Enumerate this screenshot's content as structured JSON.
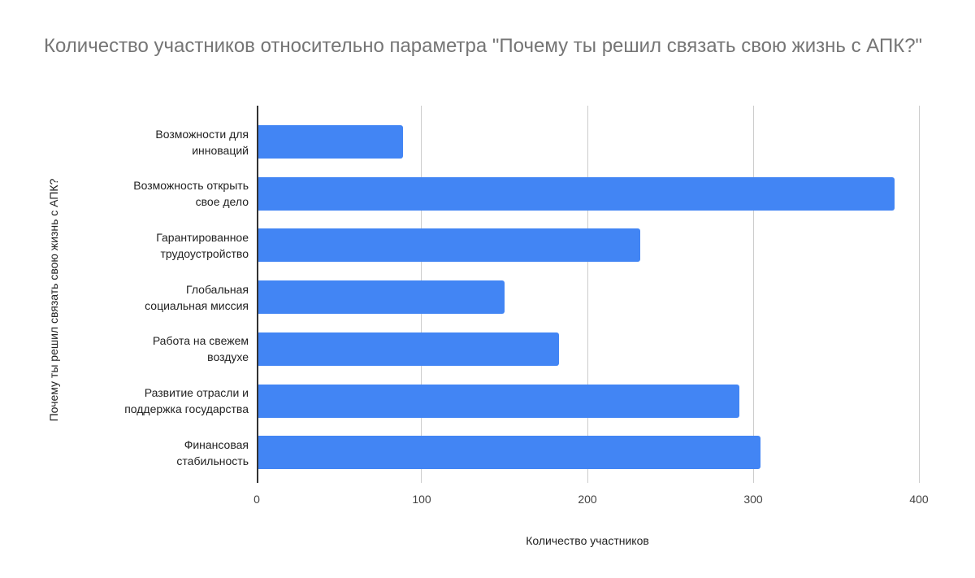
{
  "chart_data": {
    "type": "bar",
    "orientation": "horizontal",
    "title": "Количество участников относительно параметра \"Почему ты решил связать свою жизнь с АПК?\"",
    "xlabel": "Количество участников",
    "ylabel": "Почему ты решил связать свою жизнь с АПК?",
    "categories": [
      "Возможности для инноваций",
      "Возможность открыть свое дело",
      "Гарантированное трудоустройство",
      "Глобальная социальная миссия",
      "Работа на свежем воздухе",
      "Развитие отрасли и поддержка государства",
      "Финансовая стабильность"
    ],
    "category_lines": [
      [
        "Возможности для",
        "инноваций"
      ],
      [
        "Возможность открыть",
        "свое дело"
      ],
      [
        "Гарантированное",
        "трудоустройство"
      ],
      [
        "Глобальная",
        "социальная миссия"
      ],
      [
        "Работа на свежем",
        "воздухе"
      ],
      [
        "Развитие отрасли и",
        "поддержка государства"
      ],
      [
        "Финансовая",
        "стабильность"
      ]
    ],
    "values": [
      88,
      385,
      231,
      149,
      182,
      291,
      304
    ],
    "xlim": [
      0,
      400
    ],
    "xticks": [
      "0",
      "100",
      "200",
      "300",
      "400"
    ],
    "grid": true,
    "legend": "none",
    "bar_color": "#4285f4"
  }
}
